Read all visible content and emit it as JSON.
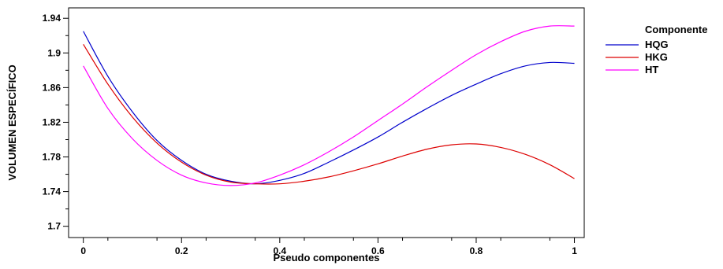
{
  "chart_data": {
    "type": "line",
    "title": "",
    "xlabel": "Pseudo componentes",
    "ylabel": "VOLUMEN ESPECÍFICO",
    "xlim": [
      -0.03,
      1.02
    ],
    "ylim": [
      1.687,
      1.952
    ],
    "x_ticks": [
      0,
      0.2,
      0.4,
      0.6,
      0.8,
      1
    ],
    "x_tick_labels": [
      "0",
      "0.2",
      "0.4",
      "0.6",
      "0.8",
      "1"
    ],
    "y_ticks": [
      1.7,
      1.74,
      1.78,
      1.82,
      1.86,
      1.9,
      1.94
    ],
    "y_tick_labels": [
      "1.7",
      "1.74",
      "1.78",
      "1.82",
      "1.86",
      "1.9",
      "1.94"
    ],
    "grid": false,
    "legend": {
      "title": "Componente",
      "placement": "right"
    },
    "series": [
      {
        "name": "HQG",
        "color": "#0000cc",
        "x": [
          0,
          0.05,
          0.1,
          0.15,
          0.2,
          0.25,
          0.3,
          0.35,
          0.4,
          0.45,
          0.5,
          0.55,
          0.6,
          0.65,
          0.7,
          0.75,
          0.8,
          0.85,
          0.9,
          0.95,
          1
        ],
        "y": [
          1.925,
          1.873,
          1.832,
          1.799,
          1.776,
          1.76,
          1.752,
          1.749,
          1.753,
          1.761,
          1.774,
          1.788,
          1.803,
          1.82,
          1.836,
          1.851,
          1.864,
          1.876,
          1.885,
          1.889,
          1.888
        ]
      },
      {
        "name": "HKG",
        "color": "#dd0000",
        "x": [
          0,
          0.05,
          0.1,
          0.15,
          0.2,
          0.25,
          0.3,
          0.35,
          0.4,
          0.45,
          0.5,
          0.55,
          0.6,
          0.65,
          0.7,
          0.75,
          0.8,
          0.85,
          0.9,
          0.95,
          1
        ],
        "y": [
          1.91,
          1.864,
          1.826,
          1.796,
          1.774,
          1.759,
          1.751,
          1.749,
          1.749,
          1.752,
          1.757,
          1.764,
          1.772,
          1.781,
          1.789,
          1.794,
          1.795,
          1.791,
          1.783,
          1.771,
          1.755
        ]
      },
      {
        "name": "HT",
        "color": "#ff00ff",
        "x": [
          0,
          0.05,
          0.1,
          0.15,
          0.2,
          0.25,
          0.3,
          0.35,
          0.4,
          0.45,
          0.5,
          0.55,
          0.6,
          0.65,
          0.7,
          0.75,
          0.8,
          0.85,
          0.9,
          0.95,
          1
        ],
        "y": [
          1.885,
          1.836,
          1.801,
          1.776,
          1.759,
          1.75,
          1.747,
          1.75,
          1.759,
          1.771,
          1.786,
          1.803,
          1.822,
          1.841,
          1.861,
          1.88,
          1.898,
          1.913,
          1.925,
          1.931,
          1.931
        ]
      }
    ]
  }
}
